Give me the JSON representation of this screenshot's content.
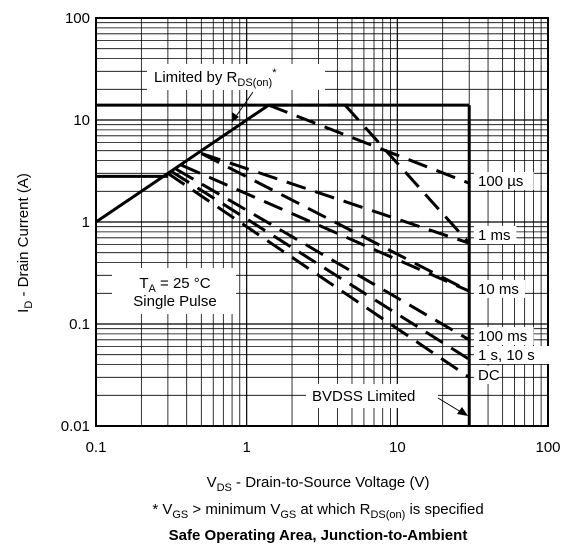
{
  "chart_data": {
    "type": "line",
    "title": "Safe Operating Area, Junction-to-Ambient",
    "xlabel": {
      "main": "V",
      "sub": "DS",
      "rest": " - Drain-to-Source Voltage (V)"
    },
    "ylabel": {
      "main": "I",
      "sub": "D",
      "rest": " - Drain Current (A)"
    },
    "x_scale": "log",
    "y_scale": "log",
    "xlim": [
      0.1,
      100
    ],
    "ylim": [
      0.01,
      100
    ],
    "x_ticks": [
      "0.1",
      "1",
      "10",
      "100"
    ],
    "y_ticks": [
      "0.01",
      "0.1",
      "1",
      "10",
      "100"
    ],
    "grid": true,
    "footnote": {
      "p1": "* V",
      "s1": "GS",
      "p2": " > minimum V",
      "s2": "GS",
      "p3": " at which R",
      "s3": "DS(on)",
      "p4": " is specified"
    },
    "annotations": {
      "rds_limit": {
        "main": "Limited by R",
        "sub": "DS(on)",
        "sup": "*"
      },
      "conditions_line1": {
        "main": "T",
        "sub": "A",
        "rest": " = 25 °C"
      },
      "conditions_line2": "Single Pulse",
      "bvdss": "BVDSS Limited"
    },
    "series": [
      {
        "name": "100 µs",
        "dashed": true,
        "points": [
          [
            1.4,
            14
          ],
          [
            30,
            2.4
          ]
        ]
      },
      {
        "name": "1 ms",
        "dashed": true,
        "points": [
          [
            0.5,
            4.7
          ],
          [
            30,
            0.62
          ]
        ]
      },
      {
        "name": "10 ms",
        "dashed": true,
        "points": [
          [
            0.37,
            3.6
          ],
          [
            30,
            0.21
          ]
        ]
      },
      {
        "name": "100 ms",
        "dashed": true,
        "points": [
          [
            0.34,
            3.3
          ],
          [
            30,
            0.07
          ]
        ]
      },
      {
        "name": "1 s, 10 s",
        "dashed": true,
        "points": [
          [
            0.32,
            3.1
          ],
          [
            30,
            0.045
          ]
        ]
      },
      {
        "name": "DC",
        "dashed": true,
        "points": [
          [
            0.3,
            3.0
          ],
          [
            30,
            0.03
          ]
        ]
      }
    ],
    "extra_lines": [
      {
        "role": "rds_limit_line",
        "dashed": false,
        "points": [
          [
            0.1,
            1.0
          ],
          [
            1.4,
            14
          ]
        ]
      },
      {
        "role": "current_limit_high",
        "dashed": false,
        "points": [
          [
            0.1,
            14
          ],
          [
            30,
            14
          ]
        ]
      },
      {
        "role": "current_limit_low",
        "dashed": false,
        "points": [
          [
            0.1,
            2.8
          ],
          [
            0.3,
            2.8
          ]
        ]
      },
      {
        "role": "bvdss_limit_line",
        "dashed": false,
        "points": [
          [
            30,
            14
          ],
          [
            30,
            0.01
          ]
        ]
      },
      {
        "role": "dashed_ext_14A",
        "dashed": true,
        "points": [
          [
            1.4,
            14
          ],
          [
            5.5,
            14
          ]
        ]
      },
      {
        "role": "dashed_high_a",
        "dashed": true,
        "points": [
          [
            4.5,
            14
          ],
          [
            30,
            0.62
          ]
        ]
      },
      {
        "role": "dashed_high_b",
        "dashed": true,
        "points": [
          [
            0.5,
            4.7
          ],
          [
            30,
            0.21
          ]
        ]
      }
    ]
  }
}
